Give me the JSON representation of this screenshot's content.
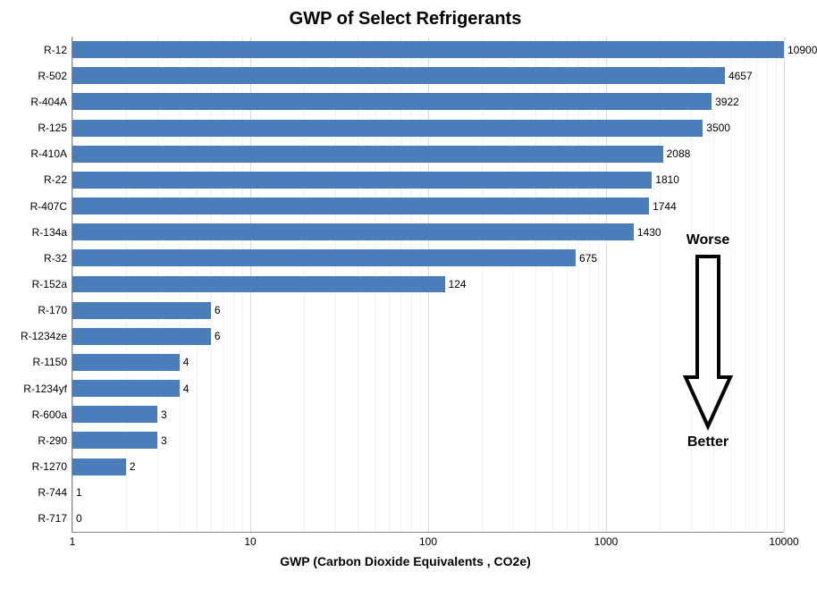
{
  "chart": {
    "type": "bar-horizontal-log",
    "title": "GWP of Select Refrigerants",
    "title_fontsize": 20,
    "x_axis": {
      "label": "GWP (Carbon Dioxide Equivalents , CO2e)",
      "label_fontsize": 14,
      "scale": "log",
      "min": 1,
      "max": 10000,
      "ticks": [
        1,
        10,
        100,
        1000,
        10000
      ]
    },
    "bar_color": "#4a7ebb",
    "background_color": "#ffffff",
    "gridline_color": "#d9d9d9",
    "axis_color": "#888888",
    "label_fontsize": 12,
    "value_fontsize": 12,
    "bar_gap_ratio": 0.35,
    "categories": [
      {
        "name": "R-12",
        "value": 10900
      },
      {
        "name": "R-502",
        "value": 4657
      },
      {
        "name": "R-404A",
        "value": 3922
      },
      {
        "name": "R-125",
        "value": 3500
      },
      {
        "name": "R-410A",
        "value": 2088
      },
      {
        "name": "R-22",
        "value": 1810
      },
      {
        "name": "R-407C",
        "value": 1744
      },
      {
        "name": "R-134a",
        "value": 1430
      },
      {
        "name": "R-32",
        "value": 675
      },
      {
        "name": "R-152a",
        "value": 124
      },
      {
        "name": "R-170",
        "value": 6
      },
      {
        "name": "R-1234ze",
        "value": 6
      },
      {
        "name": "R-1150",
        "value": 4
      },
      {
        "name": "R-1234yf",
        "value": 4
      },
      {
        "name": "R-600a",
        "value": 3
      },
      {
        "name": "R-290",
        "value": 3
      },
      {
        "name": "R-1270",
        "value": 2
      },
      {
        "name": "R-744",
        "value": 1
      },
      {
        "name": "R-717",
        "value": 0
      }
    ],
    "annotation": {
      "top_label": "Worse",
      "bottom_label": "Better",
      "arrow_color": "#000000"
    }
  }
}
